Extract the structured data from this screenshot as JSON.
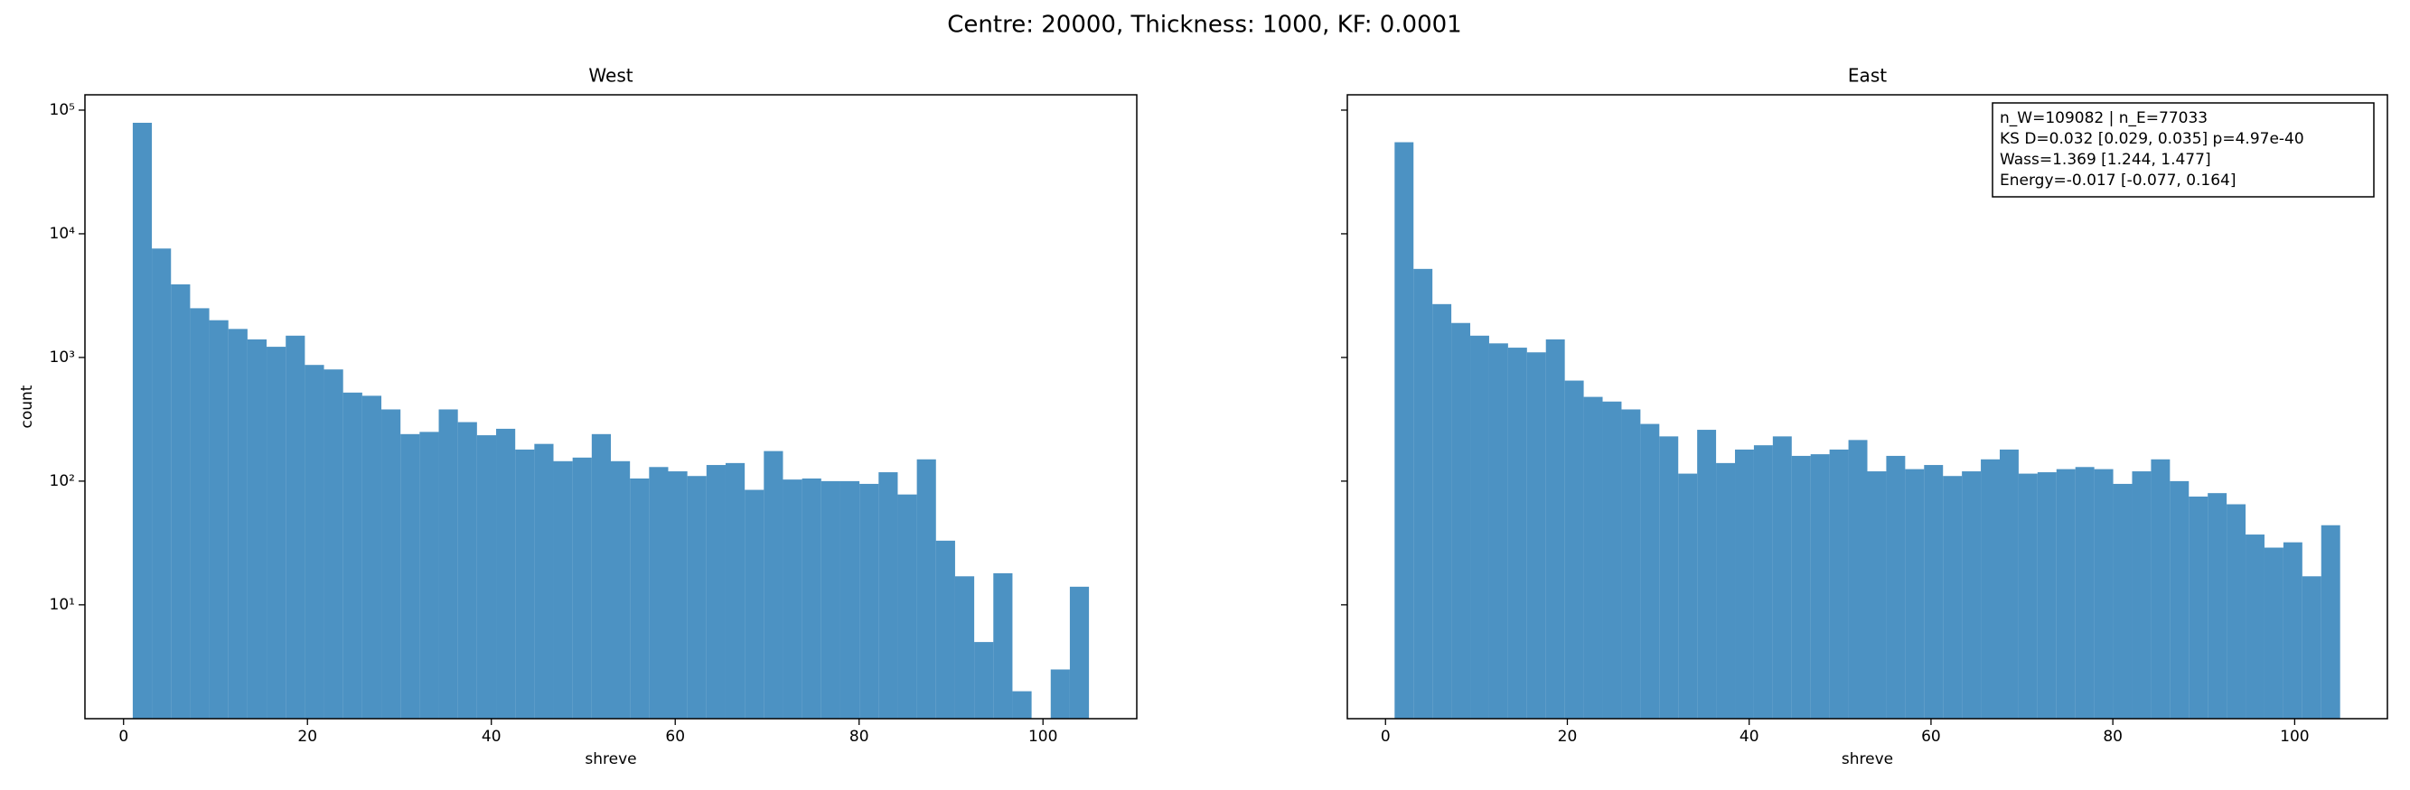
{
  "title": "Centre: 20000, Thickness: 1000, KF: 0.0001",
  "chart_data": [
    {
      "type": "histogram",
      "title": "West",
      "x_label": "shreve",
      "y_label": "count",
      "color": "#1f77b4",
      "log_y": true,
      "bins": [
        1,
        3.08,
        5.16,
        7.24,
        9.32,
        11.4,
        13.48,
        15.56,
        17.64,
        19.72,
        21.8,
        23.88,
        25.96,
        28.04,
        30.12,
        32.2,
        34.28,
        36.36,
        38.44,
        40.52,
        42.6,
        44.68,
        46.76,
        48.84,
        50.92,
        53,
        55.08,
        57.16,
        59.24,
        61.32,
        63.4,
        65.48,
        67.56,
        69.64,
        71.72,
        73.8,
        75.88,
        77.96,
        80.04,
        82.12,
        84.2,
        86.28,
        88.36,
        90.44,
        92.52,
        94.6,
        96.68,
        98.76,
        100.84,
        102.92,
        105
      ],
      "values": [
        79000,
        7600,
        3900,
        2500,
        2000,
        1700,
        1400,
        1220,
        1500,
        870,
        800,
        520,
        490,
        380,
        240,
        250,
        380,
        300,
        235,
        265,
        180,
        200,
        145,
        155,
        240,
        145,
        105,
        130,
        120,
        110,
        135,
        140,
        85,
        175,
        103,
        105,
        100,
        100,
        95,
        118,
        78,
        150,
        33,
        17,
        5,
        18,
        2,
        0,
        3,
        14
      ],
      "xlim": [
        -4.2,
        110.2
      ],
      "xticks": [
        0,
        20,
        40,
        60,
        80,
        100
      ],
      "ylim": [
        1.2,
        133000
      ],
      "yticks": [
        {
          "value": 10,
          "label": "10¹"
        },
        {
          "value": 100,
          "label": "10²"
        },
        {
          "value": 1000,
          "label": "10³"
        },
        {
          "value": 10000,
          "label": "10⁴"
        },
        {
          "value": 100000,
          "label": "10⁵"
        }
      ]
    },
    {
      "type": "histogram",
      "title": "East",
      "x_label": "shreve",
      "color": "#1f77b4",
      "log_y": true,
      "bins": [
        1,
        3.08,
        5.16,
        7.24,
        9.32,
        11.4,
        13.48,
        15.56,
        17.64,
        19.72,
        21.8,
        23.88,
        25.96,
        28.04,
        30.12,
        32.2,
        34.28,
        36.36,
        38.44,
        40.52,
        42.6,
        44.68,
        46.76,
        48.84,
        50.92,
        53,
        55.08,
        57.16,
        59.24,
        61.32,
        63.4,
        65.48,
        67.56,
        69.64,
        71.72,
        73.8,
        75.88,
        77.96,
        80.04,
        82.12,
        84.2,
        86.28,
        88.36,
        90.44,
        92.52,
        94.6,
        96.68,
        98.76,
        100.84,
        102.92,
        105
      ],
      "values": [
        55000,
        5200,
        2700,
        1900,
        1500,
        1300,
        1200,
        1100,
        1400,
        650,
        480,
        440,
        380,
        290,
        230,
        115,
        260,
        140,
        180,
        195,
        230,
        160,
        165,
        180,
        215,
        120,
        160,
        125,
        135,
        110,
        120,
        150,
        180,
        115,
        118,
        125,
        130,
        125,
        95,
        120,
        150,
        100,
        75,
        80,
        65,
        37,
        29,
        32,
        17,
        44
      ],
      "xlim": [
        -4.2,
        110.2
      ],
      "xticks": [
        0,
        20,
        40,
        60,
        80,
        100
      ],
      "ylim": [
        1.2,
        133000
      ],
      "annotation": [
        "n_W=109082 | n_E=77033",
        "KS D=0.032 [0.029, 0.035]  p=4.97e-40",
        "Wass=1.369 [1.244, 1.477]",
        "Energy=-0.017 [-0.077, 0.164]"
      ]
    }
  ]
}
